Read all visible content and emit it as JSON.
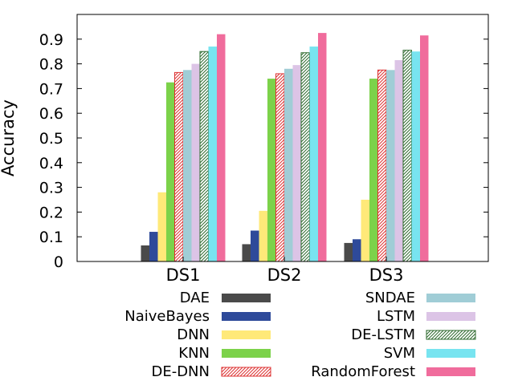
{
  "chart_data": {
    "type": "bar",
    "title": "",
    "xlabel": "",
    "ylabel": "Accuracy",
    "ylim": [
      0,
      1.0
    ],
    "yticks": [
      "0",
      "0.1",
      "0.2",
      "0.3",
      "0.4",
      "0.5",
      "0.6",
      "0.7",
      "0.8",
      "0.9"
    ],
    "grid": false,
    "legend_position": "bottom",
    "categories": [
      "DS1",
      "DS2",
      "DS3"
    ],
    "series": [
      {
        "name": "DAE",
        "color": "#4a4a4a",
        "pattern": "solid",
        "values": [
          0.065,
          0.07,
          0.075
        ]
      },
      {
        "name": "NaiveBayes",
        "color": "#2e4a9a",
        "pattern": "solid",
        "values": [
          0.12,
          0.125,
          0.09
        ]
      },
      {
        "name": "DNN",
        "color": "#ffe979",
        "pattern": "solid",
        "values": [
          0.28,
          0.205,
          0.25
        ]
      },
      {
        "name": "KNN",
        "color": "#7cd24a",
        "pattern": "solid",
        "values": [
          0.725,
          0.74,
          0.74
        ]
      },
      {
        "name": "DE-DNN",
        "color": "#dd3333",
        "pattern": "hatch",
        "values": [
          0.765,
          0.76,
          0.775
        ]
      },
      {
        "name": "SNDAE",
        "color": "#a0cdd6",
        "pattern": "solid",
        "values": [
          0.775,
          0.78,
          0.775
        ]
      },
      {
        "name": "LSTM",
        "color": "#dcc4e6",
        "pattern": "solid",
        "values": [
          0.8,
          0.795,
          0.815
        ]
      },
      {
        "name": "DE-LSTM",
        "color": "#2f6b2f",
        "pattern": "hatch",
        "values": [
          0.85,
          0.845,
          0.855
        ]
      },
      {
        "name": "SVM",
        "color": "#78e4f0",
        "pattern": "solid",
        "values": [
          0.87,
          0.87,
          0.85
        ]
      },
      {
        "name": "RandomForest",
        "color": "#f06c9c",
        "pattern": "solid",
        "values": [
          0.92,
          0.925,
          0.915
        ]
      }
    ]
  }
}
